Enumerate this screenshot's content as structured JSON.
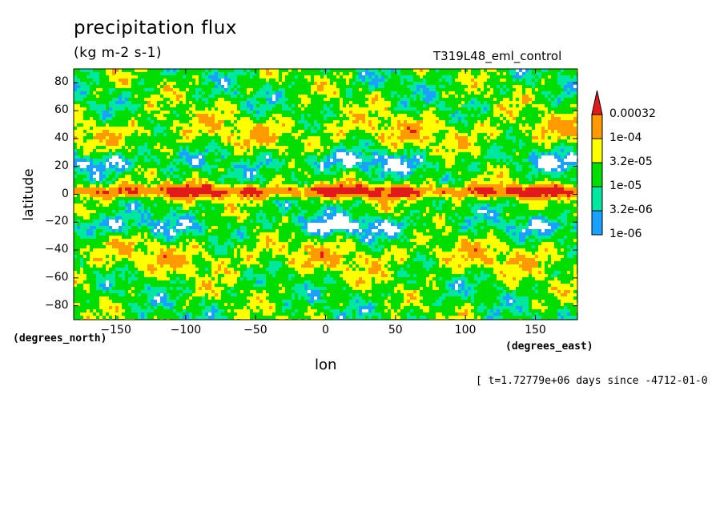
{
  "chart_data": {
    "type": "heatmap",
    "title": "precipitation flux",
    "units": "(kg m-2 s-1)",
    "run_label": "T319L48_eml_control",
    "xlabel": "lon",
    "ylabel": "latitude",
    "x_units": "(degrees_east)",
    "y_units": "(degrees_north)",
    "time_stamp": "[ t=1.72779e+06 days since -4712-01-0",
    "xlim": [
      -180,
      180
    ],
    "ylim": [
      -90,
      90
    ],
    "xticks": [
      -150,
      -100,
      -50,
      0,
      50,
      100,
      150
    ],
    "yticks": [
      80,
      60,
      40,
      20,
      0,
      -20,
      -40,
      -60,
      -80
    ],
    "xtick_labels": [
      "−150",
      "−100",
      "−50",
      "0",
      "50",
      "100",
      "150"
    ],
    "ytick_labels": [
      "80",
      "60",
      "40",
      "20",
      "0",
      "−20",
      "−40",
      "−60",
      "−80"
    ],
    "colorbar": {
      "labels": [
        "0.00032",
        "1e-04",
        "3.2e-05",
        "1e-05",
        "3.2e-06",
        "1e-06"
      ],
      "colors": [
        "#e31a1c",
        "#ff9a00",
        "#ffff00",
        "#00dd00",
        "#00e8a0",
        "#1aa0ff"
      ],
      "extend": "max"
    },
    "background_color": "#ffffff"
  }
}
